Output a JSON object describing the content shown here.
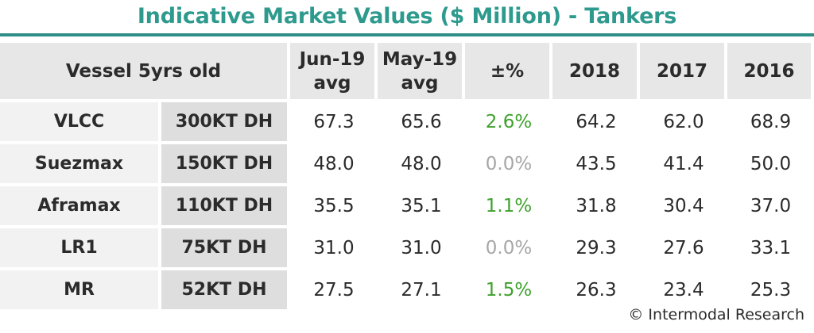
{
  "chart_data": {
    "type": "table",
    "title": "Indicative Market Values ($ Million) - Tankers",
    "columns": {
      "vessel": "Vessel 5yrs old",
      "jun": [
        "Jun-19",
        "avg"
      ],
      "may": [
        "May-19",
        "avg"
      ],
      "change": "±%",
      "y2018": "2018",
      "y2017": "2017",
      "y2016": "2016"
    },
    "rows": [
      {
        "name": "VLCC",
        "size": "300KT DH",
        "jun": "67.3",
        "may": "65.6",
        "change": "2.6%",
        "change_color": "#3fa12d",
        "y2018": "64.2",
        "y2017": "62.0",
        "y2016": "68.9"
      },
      {
        "name": "Suezmax",
        "size": "150KT DH",
        "jun": "48.0",
        "may": "48.0",
        "change": "0.0%",
        "change_color": "#a6a6a6",
        "y2018": "43.5",
        "y2017": "41.4",
        "y2016": "50.0"
      },
      {
        "name": "Aframax",
        "size": "110KT DH",
        "jun": "35.5",
        "may": "35.1",
        "change": "1.1%",
        "change_color": "#3fa12d",
        "y2018": "31.8",
        "y2017": "30.4",
        "y2016": "37.0"
      },
      {
        "name": "LR1",
        "size": "75KT DH",
        "jun": "31.0",
        "may": "31.0",
        "change": "0.0%",
        "change_color": "#a6a6a6",
        "y2018": "29.3",
        "y2017": "27.6",
        "y2016": "33.1"
      },
      {
        "name": "MR",
        "size": "52KT DH",
        "jun": "27.5",
        "may": "27.1",
        "change": "1.5%",
        "change_color": "#3fa12d",
        "y2018": "26.3",
        "y2017": "23.4",
        "y2016": "25.3"
      }
    ],
    "source": "© Intermodal Research",
    "accent_color": "#2e9a8e"
  }
}
